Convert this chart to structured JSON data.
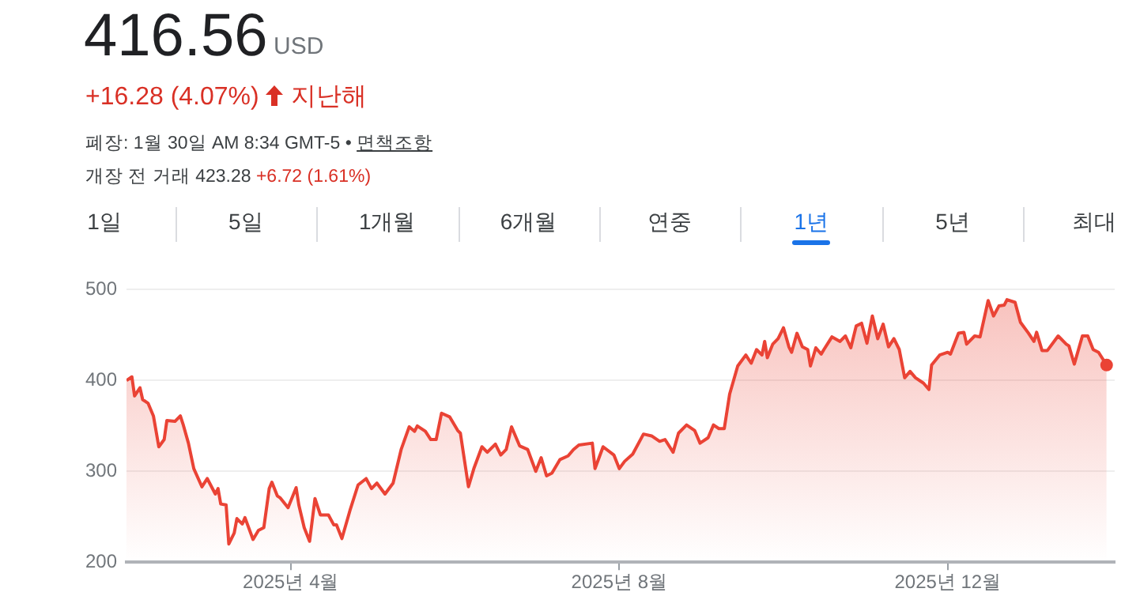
{
  "chart_data": {
    "type": "area",
    "title": "416.56",
    "annotations": [
      "USD",
      "+16.28 (4.07%)",
      "지난해",
      "폐장: 1월 30일 AM 8:34 GMT-5 •",
      "면책조항",
      "개장 전 거래 423.28",
      "+6.72 (1.61%)",
      "1일",
      "5일",
      "1개월",
      "6개월",
      "연중",
      "1년",
      "5년",
      "최대"
    ],
    "x": [
      "2025-01-30",
      "2025-02-01",
      "2025-02-02",
      "2025-02-04",
      "2025-02-05",
      "2025-02-07",
      "2025-02-09",
      "2025-02-11",
      "2025-02-13",
      "2025-02-14",
      "2025-02-17",
      "2025-02-19",
      "2025-02-20",
      "2025-02-22",
      "2025-02-24",
      "2025-02-27",
      "2025-03-01",
      "2025-03-04",
      "2025-03-05",
      "2025-03-06",
      "2025-03-08",
      "2025-03-09",
      "2025-03-11",
      "2025-03-12",
      "2025-03-14",
      "2025-03-15",
      "2025-03-18",
      "2025-03-20",
      "2025-03-22",
      "2025-03-24",
      "2025-03-25",
      "2025-03-27",
      "2025-03-28",
      "2025-03-31",
      "2025-04-03",
      "2025-04-04",
      "2025-04-06",
      "2025-04-08",
      "2025-04-10",
      "2025-04-12",
      "2025-04-15",
      "2025-04-17",
      "2025-04-18",
      "2025-04-20",
      "2025-04-23",
      "2025-04-26",
      "2025-04-29",
      "2025-05-01",
      "2025-05-03",
      "2025-05-06",
      "2025-05-09",
      "2025-05-12",
      "2025-05-15",
      "2025-05-17",
      "2025-05-18",
      "2025-05-21",
      "2025-05-23",
      "2025-05-25",
      "2025-05-27",
      "2025-05-30",
      "2025-06-02",
      "2025-06-03",
      "2025-06-06",
      "2025-06-08",
      "2025-06-11",
      "2025-06-13",
      "2025-06-16",
      "2025-06-18",
      "2025-06-20",
      "2025-06-22",
      "2025-06-25",
      "2025-06-28",
      "2025-07-01",
      "2025-07-03",
      "2025-07-05",
      "2025-07-07",
      "2025-07-10",
      "2025-07-13",
      "2025-07-15",
      "2025-07-17",
      "2025-07-22",
      "2025-07-23",
      "2025-07-26",
      "2025-07-30",
      "2025-08-01",
      "2025-08-03",
      "2025-08-06",
      "2025-08-10",
      "2025-08-13",
      "2025-08-16",
      "2025-08-18",
      "2025-08-21",
      "2025-08-23",
      "2025-08-26",
      "2025-08-29",
      "2025-08-31",
      "2025-09-03",
      "2025-09-05",
      "2025-09-07",
      "2025-09-09",
      "2025-09-11",
      "2025-09-14",
      "2025-09-17",
      "2025-09-19",
      "2025-09-21",
      "2025-09-23",
      "2025-09-24",
      "2025-09-25",
      "2025-09-27",
      "2025-09-29",
      "2025-10-01",
      "2025-10-03",
      "2025-10-04",
      "2025-10-06",
      "2025-10-08",
      "2025-10-10",
      "2025-10-11",
      "2025-10-13",
      "2025-10-15",
      "2025-10-16",
      "2025-10-19",
      "2025-10-22",
      "2025-10-24",
      "2025-10-26",
      "2025-10-28",
      "2025-10-30",
      "2025-11-01",
      "2025-11-03",
      "2025-11-05",
      "2025-11-07",
      "2025-11-09",
      "2025-11-11",
      "2025-11-13",
      "2025-11-15",
      "2025-11-17",
      "2025-11-19",
      "2025-11-22",
      "2025-11-24",
      "2025-11-25",
      "2025-11-28",
      "2025-12-01",
      "2025-12-02",
      "2025-12-05",
      "2025-12-07",
      "2025-12-08",
      "2025-12-11",
      "2025-12-13",
      "2025-12-16",
      "2025-12-18",
      "2025-12-20",
      "2025-12-22",
      "2025-12-23",
      "2025-12-26",
      "2025-12-28",
      "2025-12-31",
      "2026-01-02",
      "2026-01-03",
      "2026-01-05",
      "2026-01-07",
      "2026-01-11",
      "2026-01-14",
      "2026-01-15",
      "2026-01-17",
      "2026-01-20",
      "2026-01-22",
      "2026-01-24",
      "2026-01-26",
      "2026-01-29"
    ],
    "values": [
      400,
      404,
      383,
      392,
      379,
      375,
      361,
      327,
      335,
      356,
      355,
      361,
      352,
      331,
      303,
      283,
      292,
      275,
      281,
      264,
      263,
      220,
      232,
      248,
      242,
      249,
      225,
      235,
      238,
      281,
      288,
      273,
      271,
      260,
      282,
      263,
      238,
      223,
      270,
      252,
      252,
      241,
      241,
      226,
      257,
      285,
      292,
      281,
      287,
      275,
      287,
      324,
      349,
      344,
      350,
      344,
      335,
      335,
      364,
      360,
      345,
      342,
      283,
      303,
      327,
      321,
      330,
      318,
      324,
      349,
      328,
      324,
      300,
      315,
      295,
      298,
      313,
      317,
      324,
      329,
      331,
      303,
      327,
      318,
      303,
      311,
      319,
      341,
      339,
      333,
      335,
      321,
      342,
      351,
      345,
      331,
      337,
      351,
      347,
      347,
      385,
      416,
      428,
      419,
      434,
      428,
      443,
      425,
      440,
      446,
      458,
      437,
      431,
      452,
      437,
      434,
      416,
      436,
      429,
      434,
      448,
      443,
      449,
      436,
      460,
      463,
      441,
      471,
      446,
      462,
      437,
      446,
      434,
      403,
      410,
      403,
      397,
      390,
      417,
      428,
      431,
      429,
      452,
      453,
      440,
      449,
      448,
      488,
      471,
      482,
      483,
      489,
      486,
      464,
      452,
      443,
      453,
      433,
      433,
      449,
      440,
      438,
      418,
      449,
      449,
      434,
      431,
      417
    ],
    "color": "#ea4335",
    "xlim": [
      "2025-01-30",
      "2026-02-01"
    ],
    "xticks": [
      {
        "value": "2025-04-01",
        "label": "2025년 4월"
      },
      {
        "value": "2025-08-01",
        "label": "2025년 8월"
      },
      {
        "value": "2025-12-01",
        "label": "2025년 12월"
      }
    ],
    "ylim": [
      200,
      500
    ],
    "yticks": [
      200,
      300,
      400,
      500
    ],
    "grid": "y",
    "legend": false
  }
}
